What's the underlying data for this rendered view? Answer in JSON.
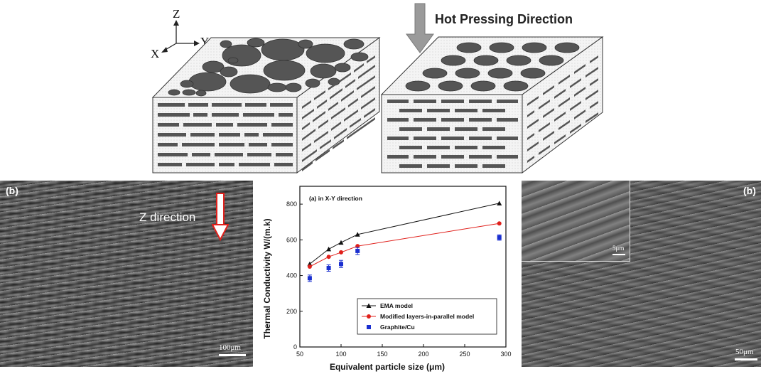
{
  "schematic": {
    "axes": {
      "z": "Z",
      "y": "Y",
      "x": "X"
    },
    "press_label": "Hot Pressing Direction"
  },
  "left_micrograph": {
    "label": "(b)",
    "annotation": "Z direction",
    "scale_bar": "100μm"
  },
  "right_micrograph": {
    "label": "(b)",
    "inset_scale_bar": "5μm",
    "scale_bar": "50μm"
  },
  "chart_data": {
    "type": "line",
    "title": "(a) in X-Y direction",
    "xlabel": "Equivalent particle size (μm)",
    "ylabel": "Thermal Conductivity W/(m.k)",
    "xlim": [
      50,
      300
    ],
    "ylim": [
      0,
      900
    ],
    "xticks": [
      50,
      100,
      150,
      200,
      250,
      300
    ],
    "yticks": [
      0,
      200,
      400,
      600,
      800
    ],
    "legend_position": "bottom-right",
    "series": [
      {
        "name": "EMA model",
        "style": "line-triangle",
        "color": "#111111",
        "x": [
          62,
          85,
          100,
          120,
          292
        ],
        "y": [
          465,
          548,
          585,
          630,
          805
        ]
      },
      {
        "name": "Modified layers-in-parallel model",
        "style": "line-circle",
        "color": "#e0201b",
        "x": [
          62,
          85,
          100,
          120,
          292
        ],
        "y": [
          450,
          505,
          530,
          565,
          692
        ]
      },
      {
        "name": "Graphite/Cu",
        "style": "square-errorbar",
        "color": "#1a2fd0",
        "x": [
          62,
          85,
          100,
          120,
          292
        ],
        "y": [
          385,
          442,
          465,
          538,
          613
        ],
        "err": [
          18,
          18,
          20,
          20,
          15
        ]
      }
    ]
  }
}
